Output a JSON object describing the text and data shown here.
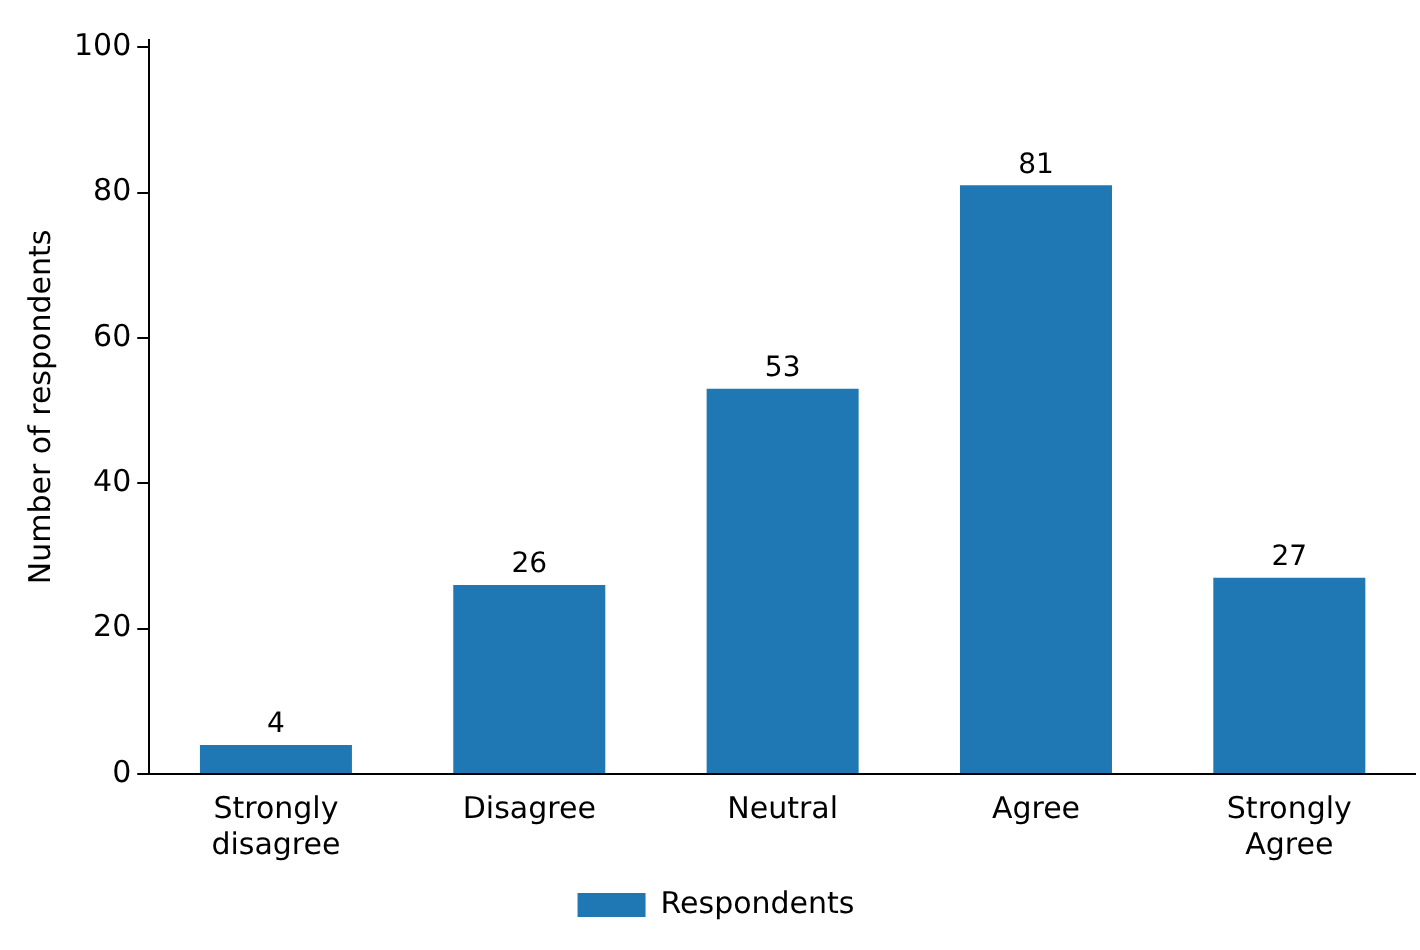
{
  "chart_data": {
    "type": "bar",
    "ylabel": "Number of respondents",
    "categories": [
      "Strongly disagree",
      "Disagree",
      "Neutral",
      "Agree",
      "Strongly Agree"
    ],
    "series": [
      {
        "name": "Respondents",
        "color": "#1f77b4",
        "values": [
          4,
          26,
          53,
          81,
          27
        ]
      }
    ],
    "ylim": [
      0,
      101
    ],
    "yticks": [
      0,
      20,
      40,
      60,
      80,
      100
    ],
    "data_labels": true,
    "grid": false,
    "legend": "bottom"
  }
}
